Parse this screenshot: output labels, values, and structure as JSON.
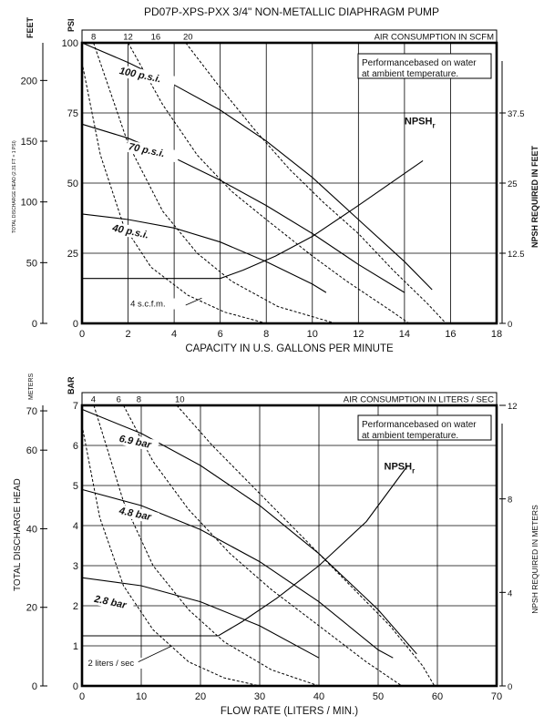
{
  "chart_data": [
    {
      "type": "line",
      "title": "PD07P-XPS-PXX 3/4\" NON-METALLIC DIAPHRAGM PUMP",
      "xlabel": "CAPACITY IN U.S. GALLONS PER MINUTE",
      "xlim": [
        0,
        18
      ],
      "xticks": [
        "0",
        "2",
        "4",
        "6",
        "8",
        "10",
        "12",
        "14",
        "16",
        "18"
      ],
      "ylim": [
        0,
        100
      ],
      "y_left_unit": "PSI",
      "yticks_psi": [
        "0",
        "25",
        "50",
        "75",
        "100"
      ],
      "feet_unit": "FEET",
      "feet_ticks": [
        "0",
        "50",
        "100",
        "150",
        "200"
      ],
      "feet_axis_label": "TOTAL DISCHARGE HEAD (2.31 FT = 1 PSI)",
      "right_axis_label": "NPSH REQUIRED IN FEET",
      "right_ticks": [
        "0",
        "12.5",
        "25",
        "37.5"
      ],
      "air_title": "AIR CONSUMPTION IN SCFM",
      "air_ticks": [
        "8",
        "12",
        "16",
        "20"
      ],
      "note_lines": [
        "Performancebased on water",
        "at ambient temperature."
      ],
      "npsh_label": "NPSH",
      "npsh_sub": "r",
      "air_curve_label": "4 s.c.f.m.",
      "series": [
        {
          "name": "100 p.s.i.",
          "x": [
            0,
            2,
            4,
            6,
            8,
            10,
            12,
            14,
            15.2
          ],
          "y": [
            100,
            93,
            85,
            76,
            65,
            52,
            37,
            22,
            12
          ]
        },
        {
          "name": "70 p.s.i.",
          "x": [
            0,
            2,
            4,
            6,
            8,
            10,
            12,
            14
          ],
          "y": [
            71,
            66,
            59,
            51,
            42,
            32,
            21,
            11
          ]
        },
        {
          "name": "40 p.s.i.",
          "x": [
            0,
            2,
            4,
            6,
            8,
            10,
            10.6
          ],
          "y": [
            39,
            37,
            34,
            29,
            22,
            14,
            11
          ]
        },
        {
          "name": "NPSH",
          "x": [
            0,
            6,
            7,
            8.4,
            10,
            12,
            14.8
          ],
          "y": [
            16,
            16,
            19,
            24,
            31,
            42,
            58
          ]
        }
      ],
      "air_curves": [
        {
          "x": [
            0,
            0.8,
            1.8,
            3,
            4.6,
            6.2,
            8
          ],
          "y": [
            93,
            60,
            35,
            20,
            10,
            4,
            0
          ]
        },
        {
          "x": [
            0.5,
            2,
            3.5,
            5,
            6.5,
            8.5,
            11
          ],
          "y": [
            100,
            64,
            40,
            25,
            15,
            6,
            0
          ]
        },
        {
          "x": [
            2,
            3.5,
            5,
            6.5,
            8,
            10,
            11.5,
            13.5,
            14.2
          ],
          "y": [
            100,
            78,
            60,
            47,
            37,
            24,
            15,
            4,
            0
          ]
        },
        {
          "x": [
            4.5,
            6,
            7.5,
            9,
            10.5,
            12,
            13.5,
            15,
            15.8
          ],
          "y": [
            100,
            84,
            69,
            55,
            43,
            32,
            19,
            7,
            0
          ]
        }
      ]
    },
    {
      "type": "line",
      "xlabel": "FLOW RATE (LITERS / MIN.)",
      "xlim": [
        0,
        70
      ],
      "xticks": [
        "0",
        "10",
        "20",
        "30",
        "40",
        "50",
        "60",
        "70"
      ],
      "ylim": [
        0,
        7
      ],
      "y_left_unit": "BAR",
      "yticks_bar": [
        "0",
        "1",
        "2",
        "3",
        "4",
        "5",
        "6",
        "7"
      ],
      "meters_unit": "METERS",
      "meters_ticks": [
        "0",
        "20",
        "40",
        "60",
        "70"
      ],
      "meters_axis_label": "TOTAL DISCHARGE HEAD",
      "right_axis_label": "NPSH REQUIRED IN METERS",
      "right_ticks": [
        "0",
        "4",
        "8",
        "12"
      ],
      "air_title": "AIR CONSUMPTION IN LITERS / SEC",
      "air_ticks": [
        "4",
        "6",
        "8",
        "10"
      ],
      "note_lines": [
        "Performancebased on water",
        "at ambient temperature."
      ],
      "npsh_label": "NPSH",
      "npsh_sub": "r",
      "air_curve_label": "2 liters / sec",
      "series": [
        {
          "name": "6.9 bar",
          "x": [
            0,
            10,
            20,
            30,
            40,
            50,
            56.5
          ],
          "y": [
            6.9,
            6.3,
            5.5,
            4.5,
            3.3,
            1.9,
            0.8
          ]
        },
        {
          "name": "4.8 bar",
          "x": [
            0,
            10,
            20,
            30,
            40,
            50,
            52.5
          ],
          "y": [
            4.9,
            4.5,
            3.9,
            3.1,
            2.1,
            0.9,
            0.7
          ]
        },
        {
          "name": "2.8 bar",
          "x": [
            0,
            10,
            20,
            30,
            40
          ],
          "y": [
            2.7,
            2.5,
            2.1,
            1.5,
            0.7
          ]
        },
        {
          "name": "NPSH",
          "x": [
            0,
            23,
            27,
            33,
            40,
            48,
            55
          ],
          "y": [
            1.25,
            1.25,
            1.6,
            2.2,
            3.0,
            4.1,
            5.5
          ]
        }
      ],
      "air_curves": [
        {
          "x": [
            0,
            3,
            7,
            12,
            18,
            24,
            30
          ],
          "y": [
            6.5,
            4.2,
            2.5,
            1.4,
            0.6,
            0.2,
            0
          ]
        },
        {
          "x": [
            2,
            7,
            12,
            18,
            24,
            32,
            40
          ],
          "y": [
            7,
            4.6,
            3.0,
            1.9,
            1.1,
            0.4,
            0
          ]
        },
        {
          "x": [
            7,
            12,
            18,
            25,
            32,
            40,
            48,
            54
          ],
          "y": [
            7,
            5.6,
            4.4,
            3.3,
            2.4,
            1.5,
            0.6,
            0
          ]
        },
        {
          "x": [
            16,
            22,
            28,
            34,
            40,
            46,
            52,
            57.5,
            59.5
          ],
          "y": [
            7,
            6.0,
            5.1,
            4.2,
            3.3,
            2.4,
            1.5,
            0.5,
            0
          ]
        }
      ]
    }
  ]
}
